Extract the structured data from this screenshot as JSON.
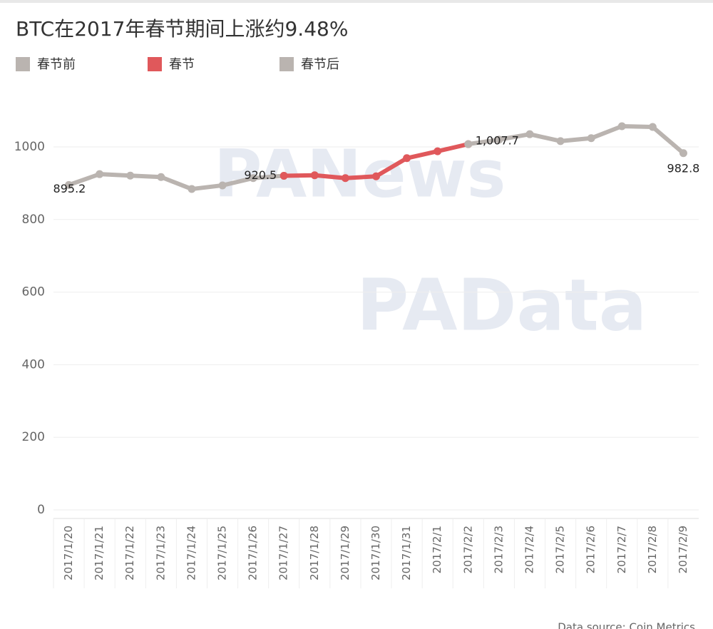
{
  "chart_data": {
    "type": "line",
    "title": "BTC在2017年春节期间上涨约9.48%",
    "source": "Data source: Coin Metrics",
    "watermarks": [
      "PANews",
      "PAData"
    ],
    "categories": [
      "2017/1/20",
      "2017/1/21",
      "2017/1/22",
      "2017/1/23",
      "2017/1/24",
      "2017/1/25",
      "2017/1/26",
      "2017/1/27",
      "2017/1/28",
      "2017/1/29",
      "2017/1/30",
      "2017/1/31",
      "2017/2/1",
      "2017/2/2",
      "2017/2/3",
      "2017/2/4",
      "2017/2/5",
      "2017/2/6",
      "2017/2/7",
      "2017/2/8",
      "2017/2/9"
    ],
    "series": [
      {
        "name": "春节前",
        "color": "#bab4b0",
        "values": [
          895.2,
          925,
          921,
          917,
          884,
          894,
          914,
          920.5,
          null,
          null,
          null,
          null,
          null,
          null,
          null,
          null,
          null,
          null,
          null,
          null,
          null
        ],
        "value_labels": [
          "895.2",
          null,
          null,
          null,
          null,
          null,
          null,
          null,
          null,
          null,
          null,
          null,
          null,
          null,
          null,
          null,
          null,
          null,
          null,
          null,
          null
        ]
      },
      {
        "name": "春节",
        "color": "#e0585b",
        "values": [
          null,
          null,
          null,
          null,
          null,
          null,
          null,
          920.5,
          922,
          914,
          919,
          969,
          988,
          1007.7,
          null,
          null,
          null,
          null,
          null,
          null,
          null
        ],
        "value_labels": [
          null,
          null,
          null,
          null,
          null,
          null,
          null,
          "920.5",
          null,
          null,
          null,
          null,
          null,
          "1,007.7",
          null,
          null,
          null,
          null,
          null,
          null,
          null
        ]
      },
      {
        "name": "春节后",
        "color": "#bab4b0",
        "values": [
          null,
          null,
          null,
          null,
          null,
          null,
          null,
          null,
          null,
          null,
          null,
          null,
          null,
          1007.7,
          1020,
          1035,
          1016,
          1024,
          1057,
          1055,
          982.8
        ],
        "value_labels": [
          null,
          null,
          null,
          null,
          null,
          null,
          null,
          null,
          null,
          null,
          null,
          null,
          null,
          null,
          null,
          null,
          null,
          null,
          null,
          null,
          "982.8"
        ]
      }
    ],
    "ylim": [
      0,
      1120
    ],
    "yticks": [
      0,
      200,
      400,
      600,
      800,
      1000
    ],
    "grid": true
  }
}
